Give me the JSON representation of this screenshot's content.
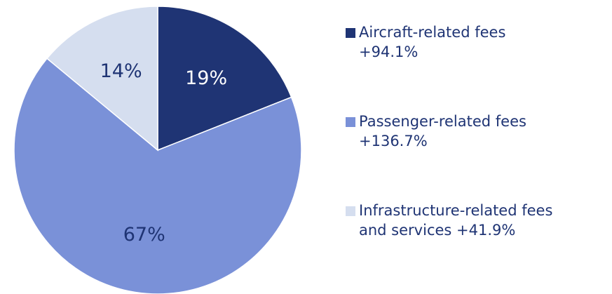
{
  "chart_data": {
    "type": "pie",
    "labels": [
      [
        "Aircraft-related fees",
        "+94.1%"
      ],
      [
        "Passenger-related fees",
        "+136.7%"
      ],
      [
        "Infrastructure-related fees",
        "and services +41.9%"
      ]
    ],
    "values": [
      19,
      67,
      14
    ],
    "value_labels": [
      "19%",
      "67%",
      "14%"
    ],
    "colors": [
      "#1f3474",
      "#7a91d8",
      "#d5deef"
    ],
    "label_colors": [
      "#ffffff",
      "#1f3474",
      "#1f3474"
    ],
    "legend": "right"
  }
}
